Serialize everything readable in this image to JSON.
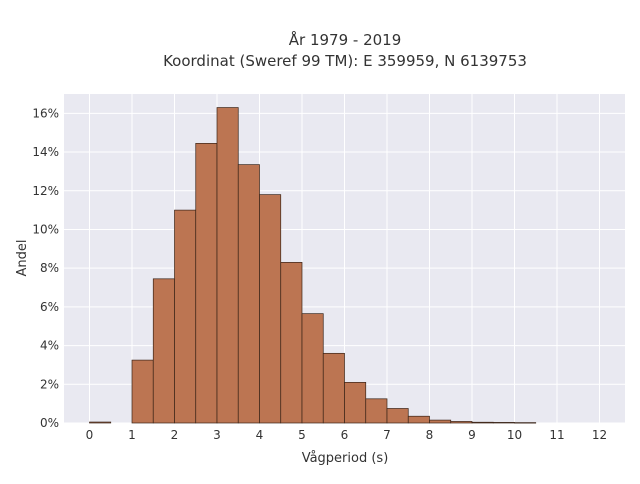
{
  "chart_data": {
    "type": "bar",
    "title_line1": "År 1979 - 2019",
    "title_line2": "Koordinat (Sweref 99 TM): E 359959, N 6139753",
    "xlabel": "Vågperiod (s)",
    "ylabel": "Andel",
    "xlim": [
      -0.6,
      12.6
    ],
    "ylim": [
      0,
      17.0
    ],
    "x_ticks": [
      0,
      1,
      2,
      3,
      4,
      5,
      6,
      7,
      8,
      9,
      10,
      11,
      12
    ],
    "y_ticks": [
      0,
      2,
      4,
      6,
      8,
      10,
      12,
      14,
      16
    ],
    "y_tick_labels": [
      "0%",
      "2%",
      "4%",
      "6%",
      "8%",
      "10%",
      "12%",
      "14%",
      "16%"
    ],
    "bin_width": 0.5,
    "bars": [
      {
        "x0": 0.0,
        "value": 0.05
      },
      {
        "x0": 1.0,
        "value": 3.25
      },
      {
        "x0": 1.5,
        "value": 7.45
      },
      {
        "x0": 2.0,
        "value": 11.0
      },
      {
        "x0": 2.5,
        "value": 14.45
      },
      {
        "x0": 3.0,
        "value": 16.3
      },
      {
        "x0": 3.5,
        "value": 13.35
      },
      {
        "x0": 4.0,
        "value": 11.8
      },
      {
        "x0": 4.5,
        "value": 8.3
      },
      {
        "x0": 5.0,
        "value": 5.65
      },
      {
        "x0": 5.5,
        "value": 3.6
      },
      {
        "x0": 6.0,
        "value": 2.1
      },
      {
        "x0": 6.5,
        "value": 1.25
      },
      {
        "x0": 7.0,
        "value": 0.75
      },
      {
        "x0": 7.5,
        "value": 0.35
      },
      {
        "x0": 8.0,
        "value": 0.15
      },
      {
        "x0": 8.5,
        "value": 0.08
      },
      {
        "x0": 9.0,
        "value": 0.04
      },
      {
        "x0": 9.5,
        "value": 0.03
      },
      {
        "x0": 10.0,
        "value": 0.02
      }
    ],
    "bar_color": "#bc7552",
    "bar_edge_color": "#3a2418",
    "plot_bg": "#e9e9f1",
    "grid_color": "#ffffff",
    "grid": true
  }
}
